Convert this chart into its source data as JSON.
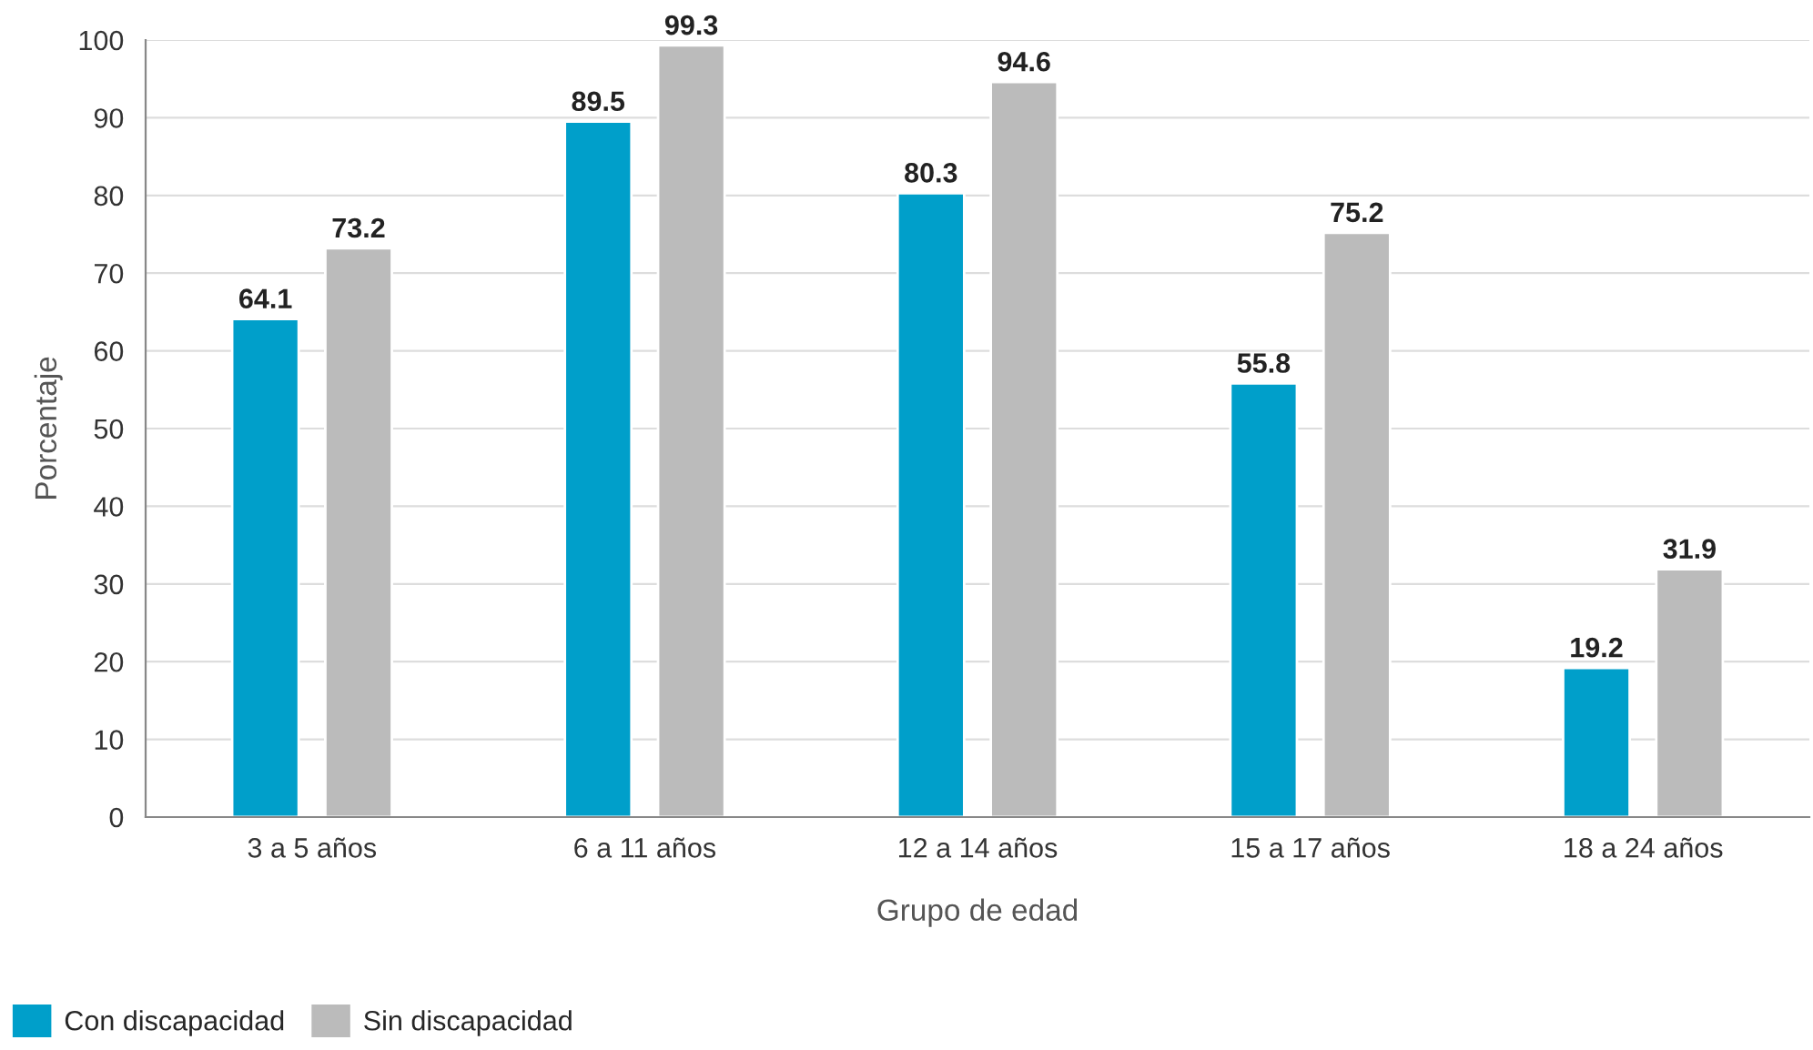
{
  "chart_data": {
    "type": "bar",
    "categories": [
      "3 a 5 años",
      "6 a 11 años",
      "12 a 14 años",
      "15 a 17 años",
      "18 a 24 años"
    ],
    "series": [
      {
        "name": "Con discapacidad",
        "color": "#009fca",
        "values": [
          64.1,
          89.5,
          80.3,
          55.8,
          19.2
        ]
      },
      {
        "name": "Sin discapacidad",
        "color": "#bbbbbb",
        "values": [
          73.2,
          99.3,
          94.6,
          75.2,
          31.9
        ]
      }
    ],
    "xlabel": "Grupo de edad",
    "ylabel": "Porcentaje",
    "ylim": [
      0,
      100
    ],
    "yticks": [
      0,
      10,
      20,
      30,
      40,
      50,
      60,
      70,
      80,
      90,
      100
    ],
    "grid": "y",
    "legend": "bottom left",
    "data_labels": true
  }
}
